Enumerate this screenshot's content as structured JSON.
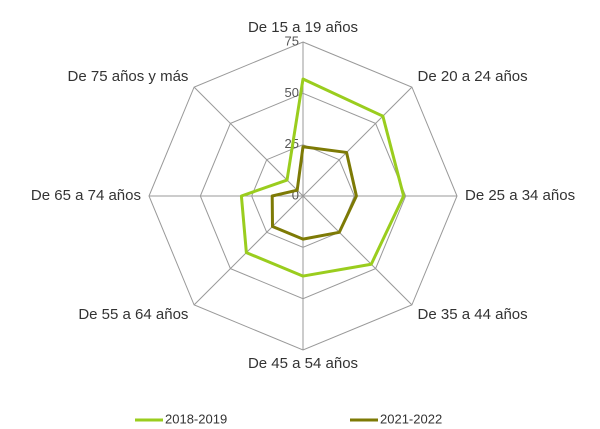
{
  "chart_data": {
    "type": "radar",
    "categories": [
      "De 15 a 19 años",
      "De 20 a 24 años",
      "De 25 a 34 años",
      "De 35 a 44 años",
      "De 45 a 54 años",
      "De 55 a 64 años",
      "De 65 a 74 años",
      "De 75 años y más"
    ],
    "series": [
      {
        "name": "2018-2019",
        "color": "#9acd1e",
        "values": [
          57,
          55,
          49,
          47,
          39,
          39,
          30,
          11
        ]
      },
      {
        "name": "2021-2022",
        "color": "#7d7a05",
        "values": [
          24,
          30,
          26,
          25,
          21,
          21,
          15,
          4
        ]
      }
    ],
    "ylim": [
      0,
      75
    ],
    "yticks": [
      0,
      25,
      50,
      75
    ],
    "grid": true,
    "legend": "bottom"
  }
}
